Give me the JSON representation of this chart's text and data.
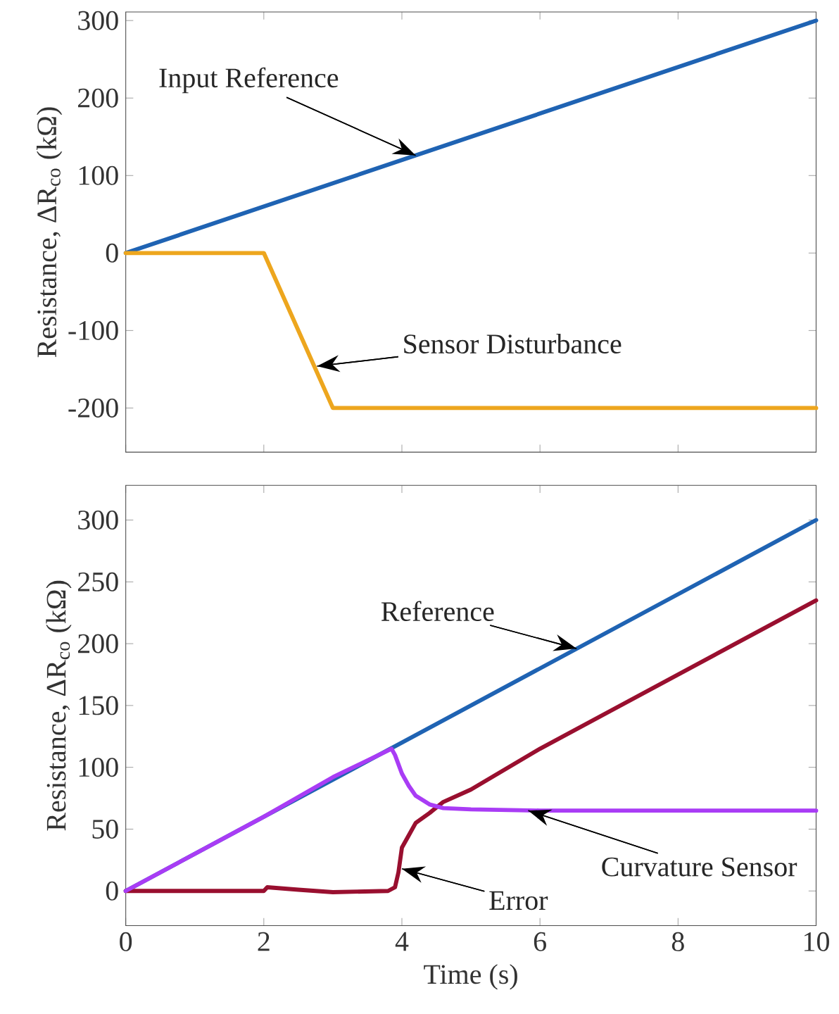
{
  "chart_data": [
    {
      "type": "line",
      "ylabel": "Resistance, ΔR$_{co}$  (kΩ)",
      "xlim": [
        0,
        10
      ],
      "ylim": [
        -257,
        311
      ],
      "xticks": [
        0,
        2,
        4,
        6,
        8,
        10
      ],
      "yticks": [
        -200,
        -100,
        0,
        100,
        200,
        300
      ],
      "tick_labels": "y",
      "grid": false,
      "marker": "none",
      "line_style": "solid",
      "series": [
        {
          "color": "#1f63b3",
          "x": [
            0,
            10
          ],
          "values": [
            0,
            300
          ]
        },
        {
          "color": "#eda61e",
          "x": [
            0,
            2,
            3,
            10
          ],
          "values": [
            0,
            0,
            -200,
            -200
          ]
        }
      ],
      "annotations": [
        {
          "text": "Input Reference",
          "x": 4.2,
          "y": 126
        },
        {
          "text": "Sensor Disturbance",
          "x": 2.77,
          "y": -146
        }
      ]
    },
    {
      "type": "line",
      "xlabel": "Time  (s)",
      "ylabel": "Resistance, ΔR$_{co}$  (kΩ)",
      "xlim": [
        0,
        10
      ],
      "ylim": [
        -28,
        328
      ],
      "xticks": [
        0,
        2,
        4,
        6,
        8,
        10
      ],
      "yticks": [
        0,
        50,
        100,
        150,
        200,
        250,
        300
      ],
      "grid": false,
      "marker": "none",
      "line_style": "solid",
      "series": [
        {
          "color": "#1f63b3",
          "x": [
            0,
            10
          ],
          "values": [
            0,
            300
          ]
        },
        {
          "color": "#990f2f",
          "x": [
            0,
            2,
            2.05,
            2.5,
            3,
            3.8,
            3.9,
            3.95,
            4,
            4.1,
            4.2,
            4.4,
            4.6,
            5,
            6,
            10
          ],
          "values": [
            0,
            0,
            3,
            1,
            -1,
            0,
            3,
            15,
            35,
            45,
            55,
            63,
            72,
            82,
            115,
            235
          ]
        },
        {
          "color": "#a93cf5",
          "x": [
            0,
            2,
            3,
            3.85,
            3.9,
            4,
            4.1,
            4.2,
            4.4,
            4.6,
            5,
            6,
            10
          ],
          "values": [
            0,
            60,
            92,
            115,
            110,
            95,
            85,
            77,
            70,
            67,
            66,
            65,
            65
          ]
        }
      ],
      "annotations": [
        {
          "text": "Reference",
          "x": 6.53,
          "y": 196
        },
        {
          "text": "Error",
          "x": 4.0,
          "y": 18
        },
        {
          "text": "Curvature Sensor",
          "x": 5.83,
          "y": 65
        }
      ]
    }
  ]
}
